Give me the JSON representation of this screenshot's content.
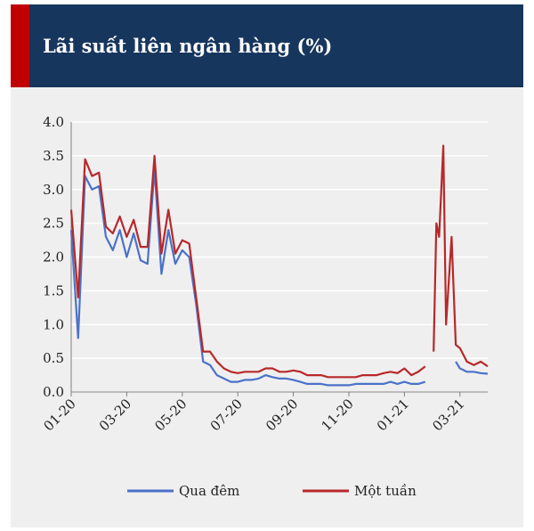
{
  "chart_data": {
    "type": "line",
    "title": "Lãi suất liên ngân hàng (%)",
    "x": [
      0,
      0.25,
      0.5,
      0.75,
      1,
      1.25,
      1.5,
      1.75,
      2,
      2.25,
      2.5,
      2.75,
      3,
      3.25,
      3.5,
      3.75,
      4,
      4.25,
      4.5,
      4.75,
      5,
      5.25,
      5.5,
      5.75,
      6,
      6.25,
      6.5,
      6.75,
      7,
      7.25,
      7.5,
      7.75,
      8,
      8.25,
      8.5,
      8.75,
      9,
      9.25,
      9.5,
      9.75,
      10,
      10.25,
      10.5,
      10.75,
      11,
      11.25,
      11.5,
      11.75,
      12,
      12.25,
      12.5,
      12.75,
      12.9,
      13.05,
      13.15,
      13.25,
      13.4,
      13.5,
      13.7,
      13.85,
      14,
      14.25,
      14.5,
      14.75,
      15
    ],
    "series": [
      {
        "name": "Qua đêm",
        "color": "#4a72c8",
        "values": [
          2.4,
          0.8,
          3.2,
          3.0,
          3.05,
          2.3,
          2.1,
          2.4,
          2.0,
          2.35,
          1.95,
          1.9,
          3.3,
          1.75,
          2.4,
          1.9,
          2.1,
          2.0,
          1.3,
          0.45,
          0.4,
          0.25,
          0.2,
          0.15,
          0.15,
          0.18,
          0.18,
          0.2,
          0.25,
          0.22,
          0.2,
          0.2,
          0.18,
          0.15,
          0.12,
          0.12,
          0.12,
          0.1,
          0.1,
          0.1,
          0.1,
          0.12,
          0.12,
          0.12,
          0.12,
          0.12,
          0.15,
          0.12,
          0.15,
          0.12,
          0.12,
          0.15,
          null,
          null,
          null,
          null,
          null,
          null,
          null,
          0.45,
          0.35,
          0.3,
          0.3,
          0.28,
          0.27
        ]
      },
      {
        "name": "Một tuần",
        "color": "#b8282a",
        "values": [
          2.7,
          1.4,
          3.45,
          3.2,
          3.25,
          2.45,
          2.35,
          2.6,
          2.3,
          2.55,
          2.15,
          2.15,
          3.5,
          2.05,
          2.7,
          2.05,
          2.25,
          2.2,
          1.4,
          0.6,
          0.6,
          0.45,
          0.35,
          0.3,
          0.28,
          0.3,
          0.3,
          0.3,
          0.35,
          0.35,
          0.3,
          0.3,
          0.32,
          0.3,
          0.25,
          0.25,
          0.25,
          0.22,
          0.22,
          0.22,
          0.22,
          0.22,
          0.25,
          0.25,
          0.25,
          0.28,
          0.3,
          0.28,
          0.35,
          0.25,
          0.3,
          0.38,
          null,
          0.6,
          2.5,
          2.3,
          3.65,
          1.0,
          2.3,
          0.7,
          0.65,
          0.45,
          0.4,
          0.45,
          0.38
        ]
      }
    ],
    "xlim": [
      0,
      15
    ],
    "xticks": [
      {
        "value": 0,
        "label": "01-20"
      },
      {
        "value": 2,
        "label": "03-20"
      },
      {
        "value": 4,
        "label": "05-20"
      },
      {
        "value": 6,
        "label": "07-20"
      },
      {
        "value": 8,
        "label": "09-20"
      },
      {
        "value": 10,
        "label": "11-20"
      },
      {
        "value": 12,
        "label": "01-21"
      },
      {
        "value": 14,
        "label": "03-21"
      }
    ],
    "ylim": [
      0,
      4
    ],
    "yticks": [
      {
        "value": 0,
        "label": "0.0"
      },
      {
        "value": 0.5,
        "label": "0.5"
      },
      {
        "value": 1,
        "label": "1.0"
      },
      1.5,
      {
        "value": 2,
        "label": "2.0"
      },
      2.5,
      {
        "value": 3,
        "label": "3.0"
      },
      3.5,
      {
        "value": 4,
        "label": "4.0"
      }
    ],
    "grid": true,
    "legend": "bottom"
  }
}
